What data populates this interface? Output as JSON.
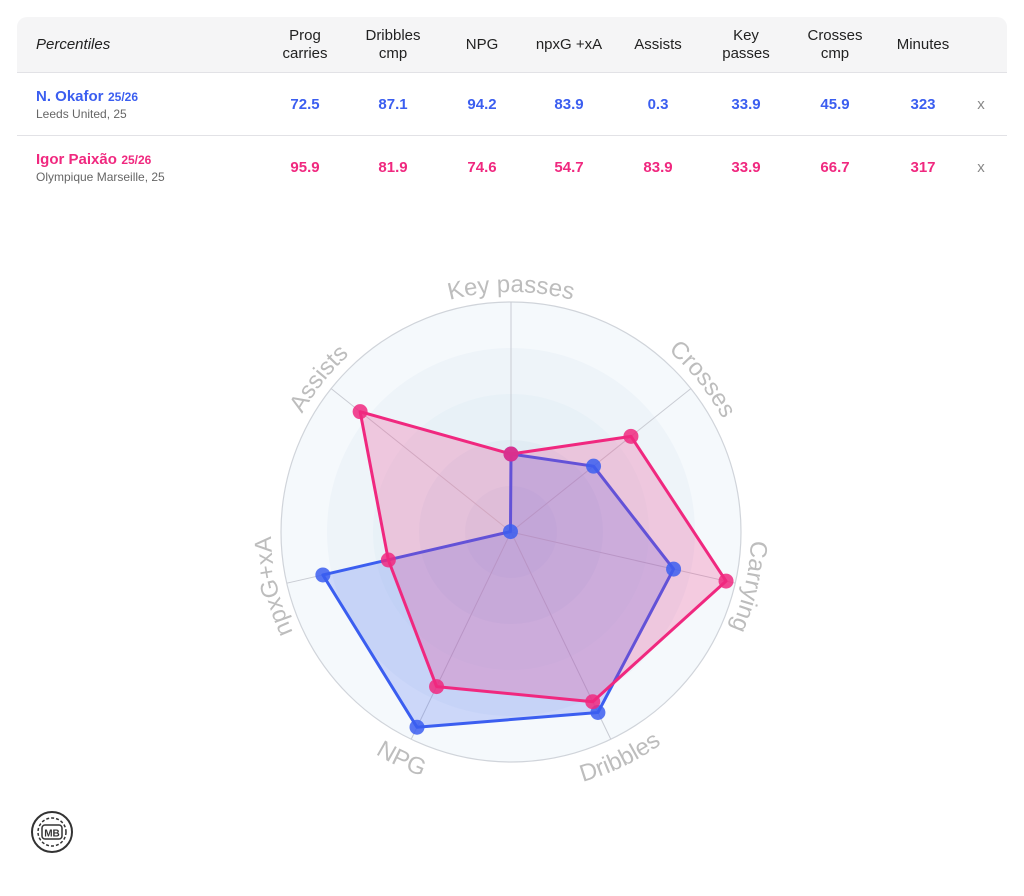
{
  "table": {
    "title": "Percentiles",
    "columns": [
      "Prog\ncarries",
      "Dribbles\ncmp",
      "NPG",
      "npxG +xA",
      "Assists",
      "Key\npasses",
      "Crosses\ncmp",
      "Minutes"
    ],
    "players": [
      {
        "name": "N. Okafor",
        "season": "25/26",
        "club": "Leeds United, 25",
        "color": "#3b5ef0",
        "values": [
          "72.5",
          "87.1",
          "94.2",
          "83.9",
          "0.3",
          "33.9",
          "45.9",
          "323"
        ],
        "remove": "x"
      },
      {
        "name": "Igor Paixão",
        "season": "25/26",
        "club": "Olympique Marseille, 25",
        "color": "#f0287f",
        "values": [
          "95.9",
          "81.9",
          "74.6",
          "54.7",
          "83.9",
          "33.9",
          "66.7",
          "317"
        ],
        "remove": "x"
      }
    ]
  },
  "chart_data": {
    "type": "radar",
    "axes": [
      "Key passes",
      "Crosses",
      "Carrying",
      "Dribbles",
      "NPG",
      "npxG+xA",
      "Assists"
    ],
    "range": [
      0,
      100
    ],
    "series": [
      {
        "name": "N. Okafor",
        "color": "#3b5ef0",
        "values": [
          33.9,
          45.9,
          72.5,
          87.1,
          94.2,
          83.9,
          0.3
        ]
      },
      {
        "name": "Igor Paixão",
        "color": "#f0287f",
        "values": [
          33.9,
          66.7,
          95.9,
          81.9,
          74.6,
          54.7,
          83.9
        ]
      }
    ]
  },
  "logo": {
    "text": "MB"
  }
}
